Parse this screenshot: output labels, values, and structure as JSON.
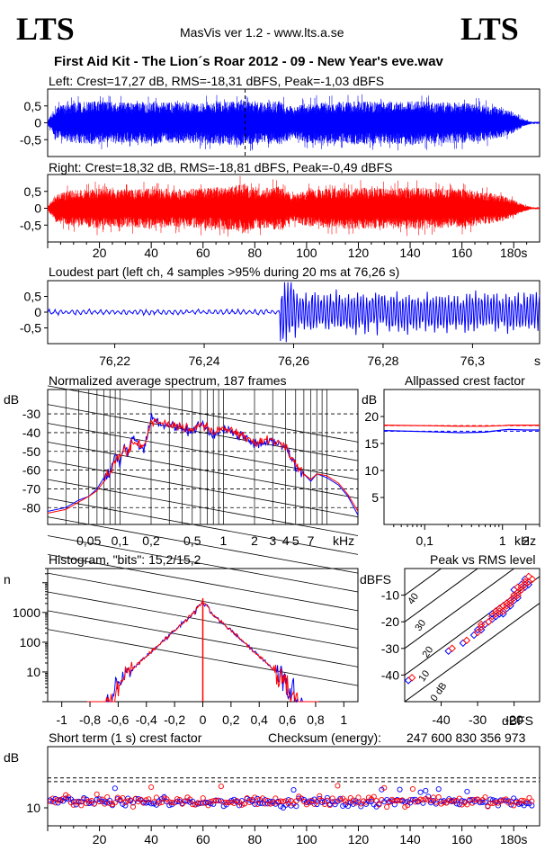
{
  "header": {
    "logo_left": "LTS",
    "logo_right": "LTS",
    "app_version": "MasVis ver 1.2 - www.lts.a.se",
    "file_title": "First Aid Kit - The Lion´s Roar 2012 - 09 - New Year's eve.wav"
  },
  "colors": {
    "left": "#0000ff",
    "right": "#ff0000",
    "frame": "#000000"
  },
  "chart_data": [
    {
      "id": "left-waveform",
      "type": "area",
      "title": "Left: Crest=17,27 dB, RMS=-18,31 dBFS, Peak=-1,03 dBFS",
      "ytick_labels": [
        "0,5",
        "0",
        "-0,5"
      ],
      "yticks": [
        0.5,
        0,
        -0.5
      ],
      "ylim": [
        -1,
        1
      ],
      "xlim": [
        0,
        190
      ],
      "marker_x": 76.26,
      "envelope": [
        [
          0,
          0.05
        ],
        [
          3,
          0.45
        ],
        [
          6,
          0.55
        ],
        [
          10,
          0.6
        ],
        [
          20,
          0.65
        ],
        [
          30,
          0.6
        ],
        [
          40,
          0.62
        ],
        [
          50,
          0.6
        ],
        [
          60,
          0.62
        ],
        [
          70,
          0.65
        ],
        [
          76,
          0.7
        ],
        [
          80,
          0.6
        ],
        [
          90,
          0.65
        ],
        [
          95,
          0.45
        ],
        [
          100,
          0.6
        ],
        [
          110,
          0.62
        ],
        [
          120,
          0.65
        ],
        [
          130,
          0.62
        ],
        [
          140,
          0.65
        ],
        [
          150,
          0.62
        ],
        [
          160,
          0.6
        ],
        [
          168,
          0.55
        ],
        [
          175,
          0.45
        ],
        [
          180,
          0.3
        ],
        [
          184,
          0.1
        ],
        [
          187,
          0.03
        ]
      ]
    },
    {
      "id": "right-waveform",
      "type": "area",
      "title": "Right: Crest=18,32 dB, RMS=-18,81 dBFS, Peak=-0,49 dBFS",
      "ytick_labels": [
        "0,5",
        "0",
        "-0,5"
      ],
      "yticks": [
        0.5,
        0,
        -0.5
      ],
      "ylim": [
        -1,
        1
      ],
      "xlim": [
        0,
        190
      ],
      "xticks": [
        20,
        40,
        60,
        80,
        100,
        120,
        140,
        160,
        180
      ],
      "xtick_labels": [
        "20",
        "40",
        "60",
        "80",
        "100",
        "120",
        "140",
        "160",
        "180s"
      ],
      "envelope": [
        [
          0,
          0.05
        ],
        [
          3,
          0.4
        ],
        [
          6,
          0.5
        ],
        [
          10,
          0.55
        ],
        [
          20,
          0.6
        ],
        [
          30,
          0.55
        ],
        [
          40,
          0.6
        ],
        [
          50,
          0.55
        ],
        [
          60,
          0.6
        ],
        [
          70,
          0.65
        ],
        [
          76,
          0.75
        ],
        [
          80,
          0.6
        ],
        [
          90,
          0.65
        ],
        [
          95,
          0.4
        ],
        [
          100,
          0.55
        ],
        [
          110,
          0.6
        ],
        [
          120,
          0.62
        ],
        [
          130,
          0.6
        ],
        [
          140,
          0.62
        ],
        [
          150,
          0.6
        ],
        [
          160,
          0.58
        ],
        [
          168,
          0.5
        ],
        [
          175,
          0.4
        ],
        [
          180,
          0.25
        ],
        [
          184,
          0.1
        ],
        [
          187,
          0.03
        ]
      ]
    },
    {
      "id": "loudest-part",
      "type": "line",
      "title": "Loudest part (left  ch, 4 samples >95% during 20 ms at 76,26 s)",
      "ytick_labels": [
        "0,5",
        "0",
        "-0,5"
      ],
      "yticks": [
        0.5,
        0,
        -0.5
      ],
      "ylim": [
        -1,
        1
      ],
      "xlim": [
        76.205,
        76.315
      ],
      "xticks": [
        76.22,
        76.24,
        76.26,
        76.28,
        76.3
      ],
      "xtick_labels": [
        "76,22",
        "76,24",
        "76,26",
        "76,28",
        "76,3"
      ],
      "xunit": "s",
      "onset_x": 76.257
    },
    {
      "id": "average-spectrum",
      "type": "line",
      "title": "Normalized average spectrum, 187 frames",
      "ylabel": "dB",
      "ytick_labels": [
        "-30",
        "-40",
        "-50",
        "-60",
        "-70",
        "-80"
      ],
      "yticks": [
        -30,
        -40,
        -50,
        -60,
        -70,
        -80
      ],
      "ylim": [
        -89,
        -17
      ],
      "xlim": [
        0.02,
        20
      ],
      "xticks": [
        0.05,
        0.1,
        0.2,
        0.5,
        1,
        2,
        3,
        4,
        5,
        7
      ],
      "xtick_labels": [
        "0,05",
        "0,1",
        "0,2",
        "0,5",
        "1",
        "2",
        "3",
        "4",
        "5",
        "7"
      ],
      "xunit": "kHz",
      "xscale": "log",
      "series": [
        {
          "points": [
            [
              0.02,
              -82
            ],
            [
              0.03,
              -80
            ],
            [
              0.04,
              -76
            ],
            [
              0.05,
              -74
            ],
            [
              0.06,
              -70
            ],
            [
              0.07,
              -64
            ],
            [
              0.08,
              -62
            ],
            [
              0.09,
              -50
            ],
            [
              0.1,
              -57
            ],
            [
              0.11,
              -45
            ],
            [
              0.12,
              -52
            ],
            [
              0.13,
              -42
            ],
            [
              0.15,
              -45
            ],
            [
              0.17,
              -50
            ],
            [
              0.2,
              -32
            ],
            [
              0.25,
              -36
            ],
            [
              0.3,
              -35
            ],
            [
              0.4,
              -38
            ],
            [
              0.5,
              -40
            ],
            [
              0.6,
              -35
            ],
            [
              0.8,
              -42
            ],
            [
              1,
              -38
            ],
            [
              1.5,
              -42
            ],
            [
              2,
              -46
            ],
            [
              3,
              -44
            ],
            [
              4,
              -48
            ],
            [
              5,
              -58
            ],
            [
              6,
              -62
            ],
            [
              7,
              -66
            ],
            [
              8,
              -62
            ],
            [
              10,
              -64
            ],
            [
              13,
              -68
            ],
            [
              16,
              -74
            ],
            [
              20,
              -84
            ]
          ]
        },
        {
          "points": [
            [
              0.02,
              -83
            ],
            [
              0.03,
              -81
            ],
            [
              0.04,
              -77
            ],
            [
              0.05,
              -74
            ],
            [
              0.06,
              -71
            ],
            [
              0.07,
              -66
            ],
            [
              0.08,
              -62
            ],
            [
              0.09,
              -55
            ],
            [
              0.1,
              -53
            ],
            [
              0.11,
              -48
            ],
            [
              0.12,
              -50
            ],
            [
              0.13,
              -45
            ],
            [
              0.15,
              -46
            ],
            [
              0.17,
              -48
            ],
            [
              0.2,
              -34
            ],
            [
              0.25,
              -35
            ],
            [
              0.3,
              -36
            ],
            [
              0.4,
              -37
            ],
            [
              0.5,
              -39
            ],
            [
              0.6,
              -36
            ],
            [
              0.8,
              -40
            ],
            [
              1,
              -38
            ],
            [
              1.5,
              -41
            ],
            [
              2,
              -45
            ],
            [
              3,
              -44
            ],
            [
              4,
              -47
            ],
            [
              5,
              -57
            ],
            [
              6,
              -62
            ],
            [
              7,
              -65
            ],
            [
              8,
              -62
            ],
            [
              10,
              -63
            ],
            [
              13,
              -67
            ],
            [
              16,
              -73
            ],
            [
              20,
              -82
            ]
          ]
        }
      ]
    },
    {
      "id": "allpassed-crest",
      "type": "line",
      "title": "Allpassed crest factor",
      "ylabel": "dB",
      "ytick_labels": [
        "20",
        "15",
        "10",
        "5"
      ],
      "yticks": [
        20,
        15,
        10,
        5
      ],
      "ylim": [
        0,
        25
      ],
      "xlim": [
        0.03,
        3
      ],
      "xticks": [
        0.1,
        1,
        2
      ],
      "xtick_labels": [
        "0,1",
        "1",
        "2"
      ],
      "xunit": "kHz",
      "xscale": "log",
      "ref_lines": [
        17.27,
        18.32
      ],
      "series": [
        {
          "points": [
            [
              0.03,
              17.4
            ],
            [
              0.1,
              17.2
            ],
            [
              0.3,
              17.0
            ],
            [
              0.6,
              17.1
            ],
            [
              1,
              17.5
            ],
            [
              1.2,
              17.6
            ],
            [
              2,
              17.5
            ],
            [
              3,
              17.5
            ]
          ]
        },
        {
          "points": [
            [
              0.03,
              18.4
            ],
            [
              0.1,
              18.3
            ],
            [
              0.3,
              18.2
            ],
            [
              0.6,
              18.2
            ],
            [
              1,
              18.3
            ],
            [
              1.2,
              18.4
            ],
            [
              2,
              18.4
            ],
            [
              3,
              18.4
            ]
          ]
        }
      ]
    },
    {
      "id": "histogram",
      "type": "line",
      "title": "Histogram, \"bits\": 15,2/15,2",
      "ylabel": "n",
      "ytick_labels": [
        "1000",
        "100",
        "10"
      ],
      "yticks": [
        1000,
        100,
        10
      ],
      "ylim": [
        1,
        30000
      ],
      "yscale": "log",
      "xlim": [
        -1.1,
        1.1
      ],
      "xticks": [
        -1,
        -0.8,
        -0.6,
        -0.4,
        -0.2,
        0,
        0.2,
        0.4,
        0.6,
        0.8,
        1
      ],
      "xtick_labels": [
        "-1",
        "-0,8",
        "-0,6",
        "-0,4",
        "-0,2",
        "0",
        "0,2",
        "0,4",
        "0,6",
        "0,8",
        "1"
      ]
    },
    {
      "id": "peak-vs-rms",
      "type": "scatter",
      "title": "Peak vs RMS level",
      "ylabel": "dBFS",
      "xlabel": "dBFS",
      "ytick_labels": [
        "-10",
        "-20",
        "-30",
        "-40"
      ],
      "yticks": [
        -10,
        -20,
        -30,
        -40
      ],
      "ylim": [
        -50,
        0
      ],
      "xlim": [
        -50,
        -13
      ],
      "xticks": [
        -40,
        -30,
        -20
      ],
      "xtick_labels": [
        "-40",
        "-30",
        "-20"
      ],
      "diagonal_labels": [
        "40",
        "30",
        "20",
        "10",
        "0 dB"
      ],
      "series": [
        {
          "points": [
            [
              -49,
              -42
            ],
            [
              -38,
              -31
            ],
            [
              -34,
              -28
            ],
            [
              -31,
              -25
            ],
            [
              -29,
              -23
            ],
            [
              -28,
              -21
            ],
            [
              -27,
              -20
            ],
            [
              -26,
              -19
            ],
            [
              -25,
              -18
            ],
            [
              -24,
              -17
            ],
            [
              -23,
              -17
            ],
            [
              -22,
              -15
            ],
            [
              -21,
              -14
            ],
            [
              -21,
              -12
            ],
            [
              -20,
              -12
            ],
            [
              -19,
              -11
            ],
            [
              -19,
              -9
            ],
            [
              -18,
              -8
            ],
            [
              -17,
              -7
            ],
            [
              -16,
              -6
            ],
            [
              -26,
              -17
            ],
            [
              -24,
              -15
            ],
            [
              -22,
              -13
            ],
            [
              -20,
              -10
            ],
            [
              -18,
              -6
            ],
            [
              -17,
              -4
            ],
            [
              -30,
              -23
            ],
            [
              -25,
              -16
            ],
            [
              -23,
              -14
            ],
            [
              -20,
              -8
            ]
          ]
        },
        {
          "points": [
            [
              -48,
              -41
            ],
            [
              -37,
              -30
            ],
            [
              -33,
              -27
            ],
            [
              -30,
              -24
            ],
            [
              -29,
              -22
            ],
            [
              -27,
              -20
            ],
            [
              -26,
              -18
            ],
            [
              -25,
              -17
            ],
            [
              -24,
              -16
            ],
            [
              -23,
              -16
            ],
            [
              -22,
              -14
            ],
            [
              -21,
              -13
            ],
            [
              -20,
              -11
            ],
            [
              -20,
              -10
            ],
            [
              -19,
              -10
            ],
            [
              -18,
              -8
            ],
            [
              -18,
              -7
            ],
            [
              -17,
              -6
            ],
            [
              -16,
              -5
            ],
            [
              -15,
              -4
            ],
            [
              -25,
              -16
            ],
            [
              -23,
              -14
            ],
            [
              -21,
              -12
            ],
            [
              -19,
              -9
            ],
            [
              -17,
              -5
            ],
            [
              -16,
              -3
            ],
            [
              -29,
              -21
            ],
            [
              -24,
              -15
            ],
            [
              -22,
              -13
            ],
            [
              -19,
              -7
            ]
          ]
        }
      ]
    },
    {
      "id": "short-term-crest",
      "type": "scatter",
      "title": "Short term (1 s) crest factor",
      "ylabel": "dB",
      "ytick_labels": [
        "10"
      ],
      "yticks": [
        10
      ],
      "ylim": [
        5,
        27
      ],
      "xlim": [
        0,
        190
      ],
      "xticks": [
        20,
        40,
        60,
        80,
        100,
        120,
        140,
        160,
        180
      ],
      "xtick_labels": [
        "20",
        "40",
        "60",
        "80",
        "100",
        "120",
        "140",
        "160",
        "180s"
      ],
      "ref_lines": [
        18.32,
        17.27
      ]
    }
  ],
  "checksum": {
    "label": "Checksum (energy):",
    "value": "247 600 830 356 973"
  }
}
